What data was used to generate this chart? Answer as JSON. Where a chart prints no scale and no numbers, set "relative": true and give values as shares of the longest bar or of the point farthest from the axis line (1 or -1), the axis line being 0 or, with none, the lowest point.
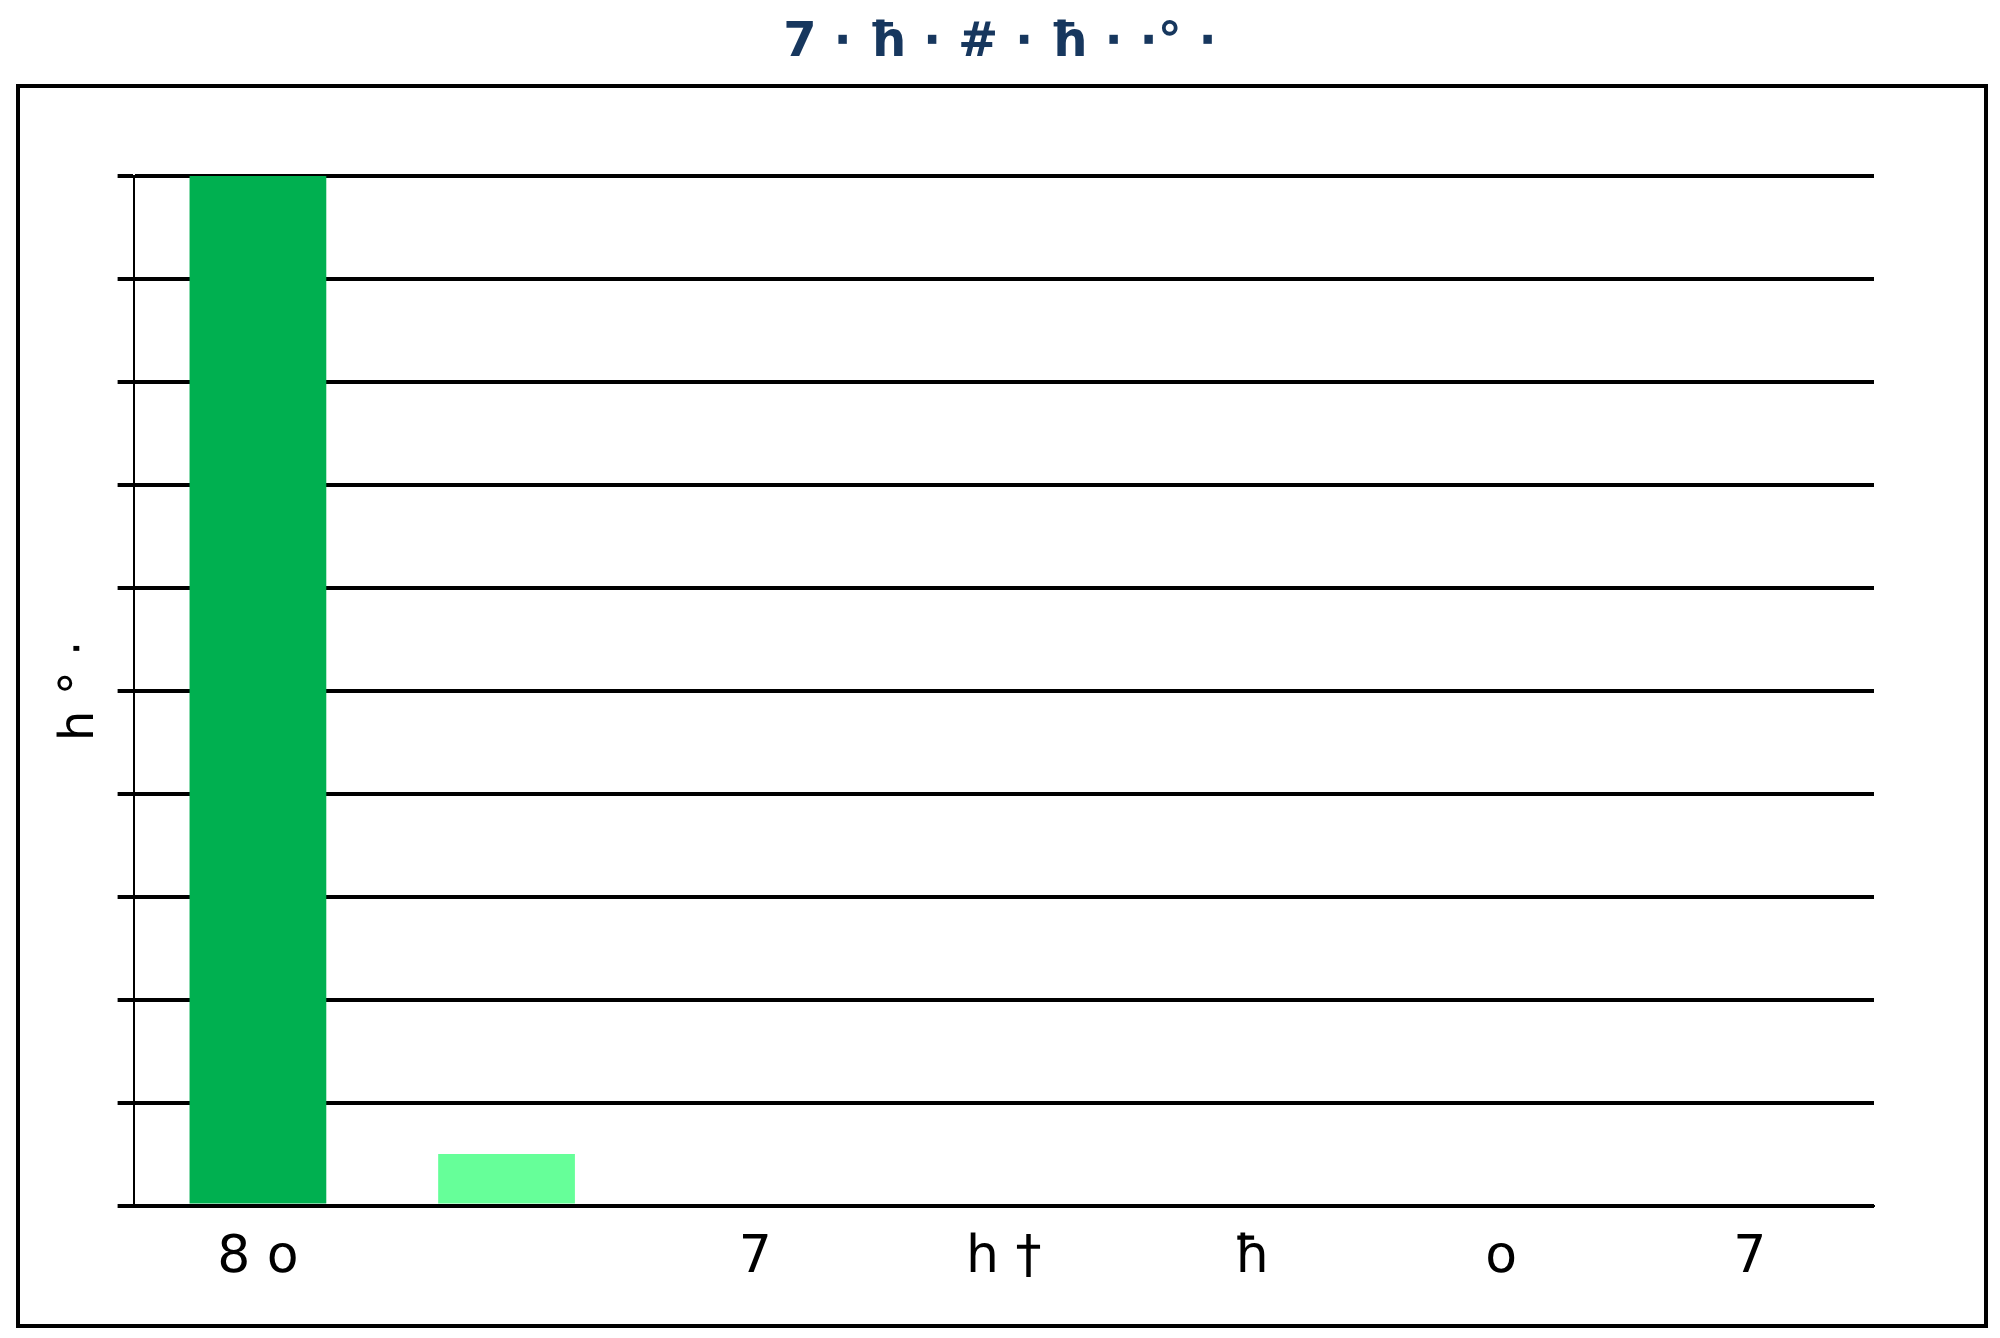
{
  "chart_data": {
    "type": "bar",
    "title": "7 · ħ · # · ħ · ·° ·",
    "ylabel": "h ° ·",
    "categories": [
      "8 o",
      null,
      "7",
      "h †",
      "ħ",
      "o",
      "7"
    ],
    "values": [
      1,
      0.05,
      0,
      0,
      0,
      0,
      0
    ],
    "colors": [
      "#00b050",
      "#66ff99",
      "#cccc00",
      "#cc0000",
      "#990000",
      "#4d2600",
      "#666666"
    ],
    "relative": true,
    "grid": "y"
  }
}
